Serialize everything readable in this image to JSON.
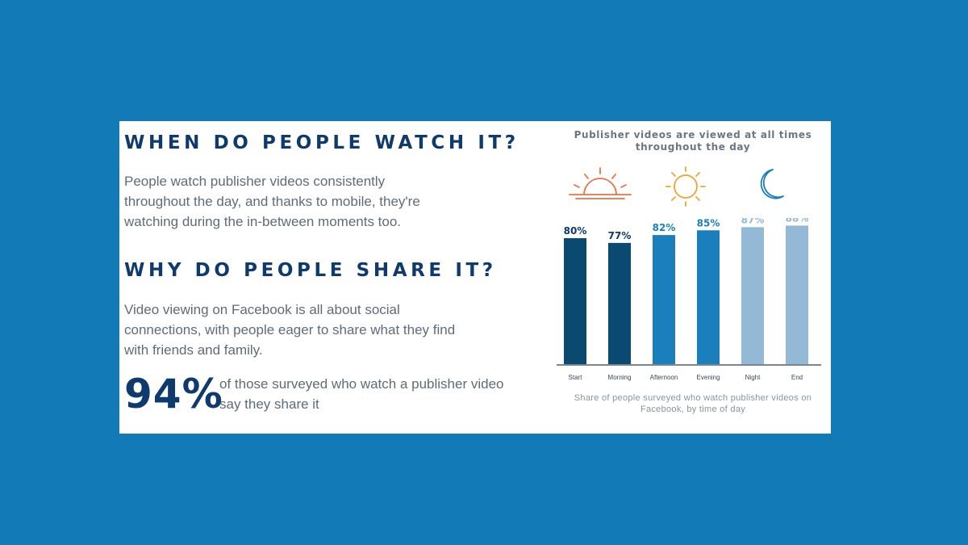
{
  "left": {
    "heading1": "WHEN DO PEOPLE WATCH IT?",
    "para1": "People watch publisher videos consistently throughout the day, and thanks to mobile, they're watching during the in-between moments too.",
    "heading2": "WHY DO PEOPLE SHARE IT?",
    "para2": "Video viewing on Facebook is all about social connections, with people eager to share what they find with friends and family.",
    "stat_value": "94%",
    "stat_text": "of those surveyed who watch a publisher video say they share it"
  },
  "icons": [
    "sunrise-icon",
    "sun-icon",
    "moon-icon"
  ],
  "colors": {
    "background": "#127ab7",
    "heading": "#0e3a6e",
    "sunrise": "#e8734a",
    "sun": "#f0a52a",
    "moon": "#1e7fb8",
    "bar_dark": "#0b4a70",
    "bar_mid": "#1a7fbc",
    "bar_light": "#93b9d6"
  },
  "chart_data": {
    "type": "bar",
    "title": "Publisher videos are viewed at all times throughout the day",
    "caption": "Share of people surveyed who watch publisher videos on Facebook, by time of day",
    "categories": [
      "Start",
      "Morning",
      "Afternoon",
      "Evening",
      "Night",
      "End"
    ],
    "values": [
      80,
      77,
      82,
      85,
      87,
      88
    ],
    "value_labels": [
      "80%",
      "77%",
      "82%",
      "85%",
      "87%",
      "88%"
    ],
    "bar_colors": [
      "#0b4a70",
      "#0b4a70",
      "#1a7fbc",
      "#1a7fbc",
      "#93b9d6",
      "#93b9d6"
    ],
    "label_colors": [
      "#0e3a6e",
      "#0e3a6e",
      "#1a7fbc",
      "#1a7fbc",
      "#93b9d6",
      "#93b9d6"
    ],
    "ylim": [
      0,
      100
    ],
    "xlabel": "",
    "ylabel": "",
    "grid": false,
    "legend": "none"
  }
}
